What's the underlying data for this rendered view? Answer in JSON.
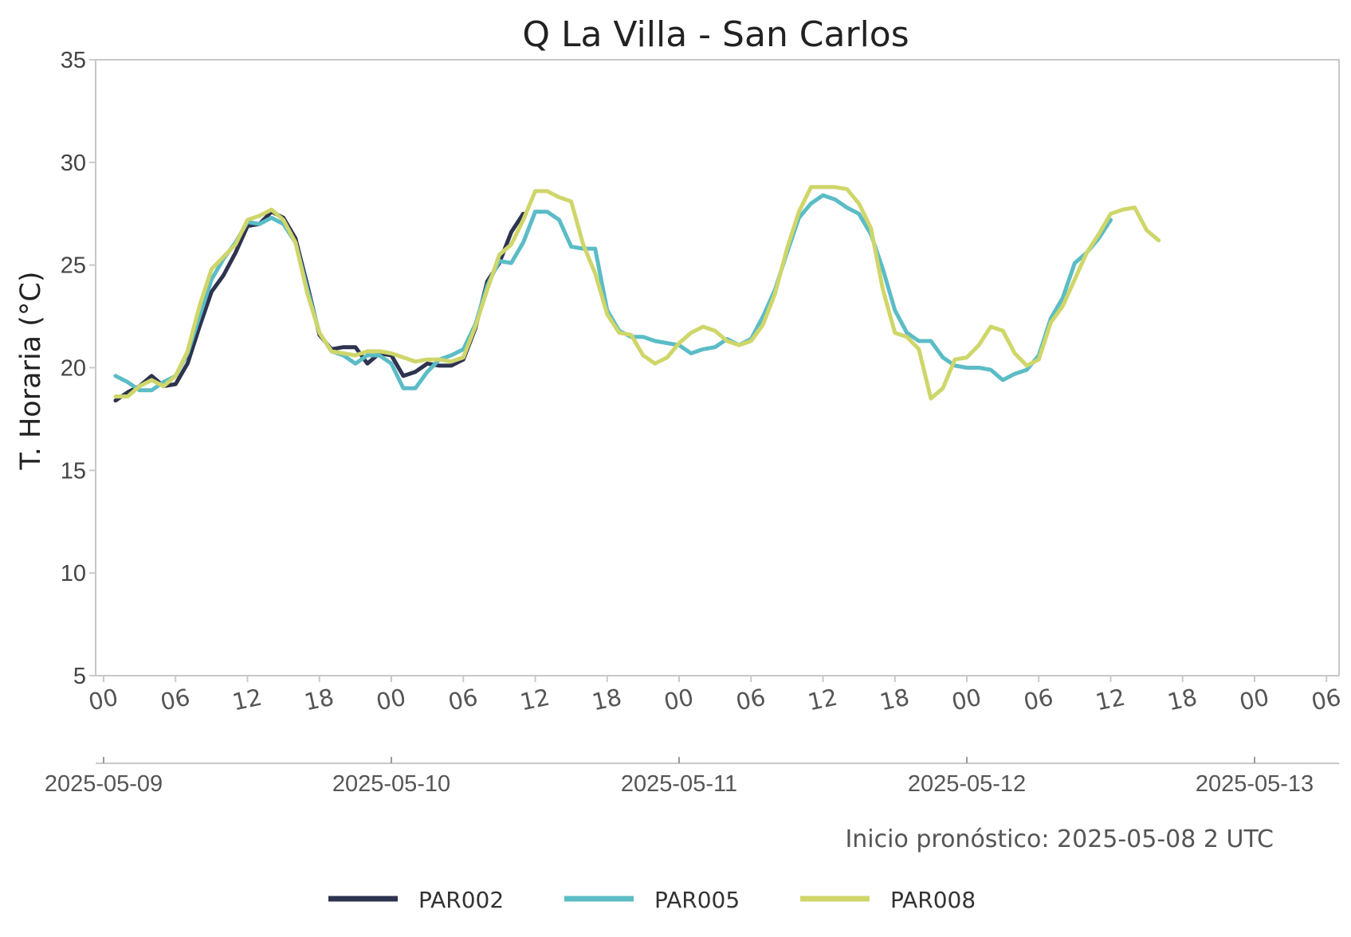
{
  "colors": {
    "PAR002": "#2e3350",
    "PAR005": "#5bbcc6",
    "PAR008": "#cfd66a",
    "axis": "#c8c8c8"
  },
  "chart_data": {
    "type": "line",
    "title": "Q La Villa - San Carlos",
    "ylabel": "T. Horaria (°C)",
    "xlabel": "",
    "ylim": [
      5,
      35
    ],
    "yticks": [
      "5",
      "10",
      "15",
      "20",
      "25",
      "30",
      "35"
    ],
    "xlim": [
      "2025-05-09 00:00",
      "2025-05-13 06:00"
    ],
    "x_hour_ticks": [
      "00",
      "06",
      "12",
      "18",
      "00",
      "06",
      "12",
      "18",
      "00",
      "06",
      "12",
      "18",
      "00",
      "06",
      "12",
      "18",
      "00",
      "06"
    ],
    "x_date_ticks": [
      "2025-05-09",
      "2025-05-10",
      "2025-05-11",
      "2025-05-12",
      "2025-05-13"
    ],
    "grid": false,
    "legend_position": "bottom",
    "annotation": "Inicio pronóstico: 2025-05-08 2 UTC",
    "series": [
      {
        "name": "PAR002",
        "color": "#2e3350",
        "points": [
          [
            "2025-05-09 01:00",
            18.4
          ],
          [
            "2025-05-09 02:00",
            18.8
          ],
          [
            "2025-05-09 03:00",
            19.1
          ],
          [
            "2025-05-09 04:00",
            19.6
          ],
          [
            "2025-05-09 05:00",
            19.1
          ],
          [
            "2025-05-09 06:00",
            19.2
          ],
          [
            "2025-05-09 07:00",
            20.2
          ],
          [
            "2025-05-09 08:00",
            22.0
          ],
          [
            "2025-05-09 09:00",
            23.7
          ],
          [
            "2025-05-09 10:00",
            24.5
          ],
          [
            "2025-05-09 11:00",
            25.6
          ],
          [
            "2025-05-09 12:00",
            26.9
          ],
          [
            "2025-05-09 13:00",
            27.0
          ],
          [
            "2025-05-09 14:00",
            27.6
          ],
          [
            "2025-05-09 15:00",
            27.3
          ],
          [
            "2025-05-09 16:00",
            26.3
          ],
          [
            "2025-05-09 17:00",
            24.0
          ],
          [
            "2025-05-09 18:00",
            21.6
          ],
          [
            "2025-05-09 19:00",
            20.9
          ],
          [
            "2025-05-09 20:00",
            21.0
          ],
          [
            "2025-05-09 21:00",
            21.0
          ],
          [
            "2025-05-09 22:00",
            20.2
          ],
          [
            "2025-05-09 23:00",
            20.7
          ],
          [
            "2025-05-10 00:00",
            20.6
          ],
          [
            "2025-05-10 01:00",
            19.6
          ],
          [
            "2025-05-10 02:00",
            19.8
          ],
          [
            "2025-05-10 03:00",
            20.2
          ],
          [
            "2025-05-10 04:00",
            20.1
          ],
          [
            "2025-05-10 05:00",
            20.1
          ],
          [
            "2025-05-10 06:00",
            20.4
          ],
          [
            "2025-05-10 07:00",
            21.9
          ],
          [
            "2025-05-10 08:00",
            24.2
          ],
          [
            "2025-05-10 09:00",
            25.1
          ],
          [
            "2025-05-10 10:00",
            26.6
          ],
          [
            "2025-05-10 11:00",
            27.5
          ]
        ]
      },
      {
        "name": "PAR005",
        "color": "#5bbcc6",
        "points": [
          [
            "2025-05-09 01:00",
            19.6
          ],
          [
            "2025-05-09 02:00",
            19.3
          ],
          [
            "2025-05-09 03:00",
            18.9
          ],
          [
            "2025-05-09 04:00",
            18.9
          ],
          [
            "2025-05-09 05:00",
            19.3
          ],
          [
            "2025-05-09 06:00",
            19.6
          ],
          [
            "2025-05-09 07:00",
            20.7
          ],
          [
            "2025-05-09 08:00",
            22.5
          ],
          [
            "2025-05-09 09:00",
            24.3
          ],
          [
            "2025-05-09 10:00",
            25.3
          ],
          [
            "2025-05-09 11:00",
            26.1
          ],
          [
            "2025-05-09 12:00",
            27.1
          ],
          [
            "2025-05-09 13:00",
            27.0
          ],
          [
            "2025-05-09 14:00",
            27.3
          ],
          [
            "2025-05-09 15:00",
            27.0
          ],
          [
            "2025-05-09 16:00",
            26.1
          ],
          [
            "2025-05-09 17:00",
            23.8
          ],
          [
            "2025-05-09 18:00",
            21.7
          ],
          [
            "2025-05-09 19:00",
            20.8
          ],
          [
            "2025-05-09 20:00",
            20.6
          ],
          [
            "2025-05-09 21:00",
            20.2
          ],
          [
            "2025-05-09 22:00",
            20.6
          ],
          [
            "2025-05-09 23:00",
            20.6
          ],
          [
            "2025-05-10 00:00",
            20.2
          ],
          [
            "2025-05-10 01:00",
            19.0
          ],
          [
            "2025-05-10 02:00",
            19.0
          ],
          [
            "2025-05-10 03:00",
            19.8
          ],
          [
            "2025-05-10 04:00",
            20.4
          ],
          [
            "2025-05-10 05:00",
            20.6
          ],
          [
            "2025-05-10 06:00",
            20.9
          ],
          [
            "2025-05-10 07:00",
            22.1
          ],
          [
            "2025-05-10 08:00",
            24.0
          ],
          [
            "2025-05-10 09:00",
            25.2
          ],
          [
            "2025-05-10 10:00",
            25.1
          ],
          [
            "2025-05-10 11:00",
            26.1
          ],
          [
            "2025-05-10 12:00",
            27.6
          ],
          [
            "2025-05-10 13:00",
            27.6
          ],
          [
            "2025-05-10 14:00",
            27.2
          ],
          [
            "2025-05-10 15:00",
            25.9
          ],
          [
            "2025-05-10 16:00",
            25.8
          ],
          [
            "2025-05-10 17:00",
            25.8
          ],
          [
            "2025-05-10 18:00",
            22.8
          ],
          [
            "2025-05-10 19:00",
            21.8
          ],
          [
            "2025-05-10 20:00",
            21.5
          ],
          [
            "2025-05-10 21:00",
            21.5
          ],
          [
            "2025-05-10 22:00",
            21.3
          ],
          [
            "2025-05-10 23:00",
            21.2
          ],
          [
            "2025-05-11 00:00",
            21.1
          ],
          [
            "2025-05-11 01:00",
            20.7
          ],
          [
            "2025-05-11 02:00",
            20.9
          ],
          [
            "2025-05-11 03:00",
            21.0
          ],
          [
            "2025-05-11 04:00",
            21.4
          ],
          [
            "2025-05-11 05:00",
            21.1
          ],
          [
            "2025-05-11 06:00",
            21.4
          ],
          [
            "2025-05-11 07:00",
            22.5
          ],
          [
            "2025-05-11 08:00",
            23.8
          ],
          [
            "2025-05-11 09:00",
            25.6
          ],
          [
            "2025-05-11 10:00",
            27.3
          ],
          [
            "2025-05-11 11:00",
            28.0
          ],
          [
            "2025-05-11 12:00",
            28.4
          ],
          [
            "2025-05-11 13:00",
            28.2
          ],
          [
            "2025-05-11 14:00",
            27.8
          ],
          [
            "2025-05-11 15:00",
            27.5
          ],
          [
            "2025-05-11 16:00",
            26.5
          ],
          [
            "2025-05-11 17:00",
            24.8
          ],
          [
            "2025-05-11 18:00",
            22.8
          ],
          [
            "2025-05-11 19:00",
            21.7
          ],
          [
            "2025-05-11 20:00",
            21.3
          ],
          [
            "2025-05-11 21:00",
            21.3
          ],
          [
            "2025-05-11 22:00",
            20.5
          ],
          [
            "2025-05-11 23:00",
            20.1
          ],
          [
            "2025-05-12 00:00",
            20.0
          ],
          [
            "2025-05-12 01:00",
            20.0
          ],
          [
            "2025-05-12 02:00",
            19.9
          ],
          [
            "2025-05-12 03:00",
            19.4
          ],
          [
            "2025-05-12 04:00",
            19.7
          ],
          [
            "2025-05-12 05:00",
            19.9
          ],
          [
            "2025-05-12 06:00",
            20.6
          ],
          [
            "2025-05-12 07:00",
            22.4
          ],
          [
            "2025-05-12 08:00",
            23.4
          ],
          [
            "2025-05-12 09:00",
            25.1
          ],
          [
            "2025-05-12 10:00",
            25.6
          ],
          [
            "2025-05-12 11:00",
            26.3
          ],
          [
            "2025-05-12 12:00",
            27.2
          ]
        ]
      },
      {
        "name": "PAR008",
        "color": "#cfd66a",
        "points": [
          [
            "2025-05-09 01:00",
            18.6
          ],
          [
            "2025-05-09 02:00",
            18.6
          ],
          [
            "2025-05-09 03:00",
            19.1
          ],
          [
            "2025-05-09 04:00",
            19.4
          ],
          [
            "2025-05-09 05:00",
            19.1
          ],
          [
            "2025-05-09 06:00",
            19.6
          ],
          [
            "2025-05-09 07:00",
            20.8
          ],
          [
            "2025-05-09 08:00",
            23.0
          ],
          [
            "2025-05-09 09:00",
            24.8
          ],
          [
            "2025-05-09 10:00",
            25.4
          ],
          [
            "2025-05-09 11:00",
            26.0
          ],
          [
            "2025-05-09 12:00",
            27.2
          ],
          [
            "2025-05-09 13:00",
            27.4
          ],
          [
            "2025-05-09 14:00",
            27.7
          ],
          [
            "2025-05-09 15:00",
            27.2
          ],
          [
            "2025-05-09 16:00",
            26.1
          ],
          [
            "2025-05-09 17:00",
            23.6
          ],
          [
            "2025-05-09 18:00",
            21.7
          ],
          [
            "2025-05-09 19:00",
            20.8
          ],
          [
            "2025-05-09 20:00",
            20.7
          ],
          [
            "2025-05-09 21:00",
            20.6
          ],
          [
            "2025-05-09 22:00",
            20.8
          ],
          [
            "2025-05-09 23:00",
            20.8
          ],
          [
            "2025-05-10 00:00",
            20.7
          ],
          [
            "2025-05-10 01:00",
            20.5
          ],
          [
            "2025-05-10 02:00",
            20.3
          ],
          [
            "2025-05-10 03:00",
            20.4
          ],
          [
            "2025-05-10 04:00",
            20.4
          ],
          [
            "2025-05-10 05:00",
            20.3
          ],
          [
            "2025-05-10 06:00",
            20.5
          ],
          [
            "2025-05-10 07:00",
            22.0
          ],
          [
            "2025-05-10 08:00",
            23.8
          ],
          [
            "2025-05-10 09:00",
            25.5
          ],
          [
            "2025-05-10 10:00",
            26.0
          ],
          [
            "2025-05-10 11:00",
            27.2
          ],
          [
            "2025-05-10 12:00",
            28.6
          ],
          [
            "2025-05-10 13:00",
            28.6
          ],
          [
            "2025-05-10 14:00",
            28.3
          ],
          [
            "2025-05-10 15:00",
            28.1
          ],
          [
            "2025-05-10 16:00",
            26.0
          ],
          [
            "2025-05-10 17:00",
            24.6
          ],
          [
            "2025-05-10 18:00",
            22.6
          ],
          [
            "2025-05-10 19:00",
            21.7
          ],
          [
            "2025-05-10 20:00",
            21.6
          ],
          [
            "2025-05-10 21:00",
            20.6
          ],
          [
            "2025-05-10 22:00",
            20.2
          ],
          [
            "2025-05-10 23:00",
            20.5
          ],
          [
            "2025-05-11 00:00",
            21.2
          ],
          [
            "2025-05-11 01:00",
            21.7
          ],
          [
            "2025-05-11 02:00",
            22.0
          ],
          [
            "2025-05-11 03:00",
            21.8
          ],
          [
            "2025-05-11 04:00",
            21.3
          ],
          [
            "2025-05-11 05:00",
            21.1
          ],
          [
            "2025-05-11 06:00",
            21.3
          ],
          [
            "2025-05-11 07:00",
            22.1
          ],
          [
            "2025-05-11 08:00",
            23.6
          ],
          [
            "2025-05-11 09:00",
            25.8
          ],
          [
            "2025-05-11 10:00",
            27.6
          ],
          [
            "2025-05-11 11:00",
            28.8
          ],
          [
            "2025-05-11 12:00",
            28.8
          ],
          [
            "2025-05-11 13:00",
            28.8
          ],
          [
            "2025-05-11 14:00",
            28.7
          ],
          [
            "2025-05-11 15:00",
            28.0
          ],
          [
            "2025-05-11 16:00",
            26.8
          ],
          [
            "2025-05-11 17:00",
            23.8
          ],
          [
            "2025-05-11 18:00",
            21.7
          ],
          [
            "2025-05-11 19:00",
            21.5
          ],
          [
            "2025-05-11 20:00",
            20.9
          ],
          [
            "2025-05-11 21:00",
            18.5
          ],
          [
            "2025-05-11 22:00",
            19.0
          ],
          [
            "2025-05-11 23:00",
            20.4
          ],
          [
            "2025-05-12 00:00",
            20.5
          ],
          [
            "2025-05-12 01:00",
            21.1
          ],
          [
            "2025-05-12 02:00",
            22.0
          ],
          [
            "2025-05-12 03:00",
            21.8
          ],
          [
            "2025-05-12 04:00",
            20.7
          ],
          [
            "2025-05-12 05:00",
            20.1
          ],
          [
            "2025-05-12 06:00",
            20.4
          ],
          [
            "2025-05-12 07:00",
            22.2
          ],
          [
            "2025-05-12 08:00",
            23.0
          ],
          [
            "2025-05-12 09:00",
            24.3
          ],
          [
            "2025-05-12 10:00",
            25.6
          ],
          [
            "2025-05-12 11:00",
            26.5
          ],
          [
            "2025-05-12 12:00",
            27.5
          ],
          [
            "2025-05-12 13:00",
            27.7
          ],
          [
            "2025-05-12 14:00",
            27.8
          ],
          [
            "2025-05-12 15:00",
            26.7
          ],
          [
            "2025-05-12 16:00",
            26.2
          ]
        ]
      }
    ]
  }
}
